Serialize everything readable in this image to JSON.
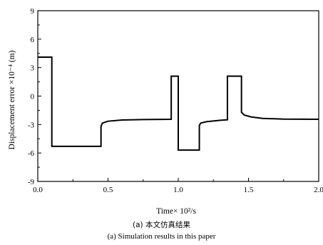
{
  "caption_cn": "(a) 本文仿真结果",
  "caption_en": "(a) Simulation results in this paper",
  "chart_data": {
    "type": "line",
    "xlabel": "Time× 10²/s",
    "ylabel": "Displacement error ×10⁻⁴ (m)",
    "xlim": [
      0.0,
      2.0
    ],
    "ylim": [
      -9,
      9
    ],
    "x_ticks": [
      "0.0",
      "0.5",
      "1.0",
      "1.5",
      "2.0"
    ],
    "y_ticks": [
      "-9",
      "-6",
      "-3",
      "0",
      "3",
      "6",
      "9"
    ],
    "grid": false,
    "series": [
      {
        "color": "#000000",
        "points": [
          [
            0.0,
            4.1
          ],
          [
            0.1,
            4.1
          ],
          [
            0.1,
            -5.3
          ],
          [
            0.45,
            -5.3
          ],
          [
            0.45,
            -3.2
          ],
          [
            0.46,
            -2.85
          ],
          [
            0.5,
            -2.65
          ],
          [
            0.6,
            -2.52
          ],
          [
            0.75,
            -2.48
          ],
          [
            0.95,
            -2.45
          ],
          [
            0.95,
            2.1
          ],
          [
            1.0,
            2.1
          ],
          [
            1.0,
            -5.7
          ],
          [
            1.15,
            -5.7
          ],
          [
            1.15,
            -3.1
          ],
          [
            1.16,
            -2.85
          ],
          [
            1.2,
            -2.7
          ],
          [
            1.3,
            -2.55
          ],
          [
            1.35,
            -2.5
          ],
          [
            1.35,
            2.1
          ],
          [
            1.45,
            2.1
          ],
          [
            1.45,
            -1.7
          ],
          [
            1.47,
            -2.0
          ],
          [
            1.52,
            -2.2
          ],
          [
            1.6,
            -2.35
          ],
          [
            1.75,
            -2.43
          ],
          [
            2.0,
            -2.45
          ]
        ]
      }
    ]
  }
}
